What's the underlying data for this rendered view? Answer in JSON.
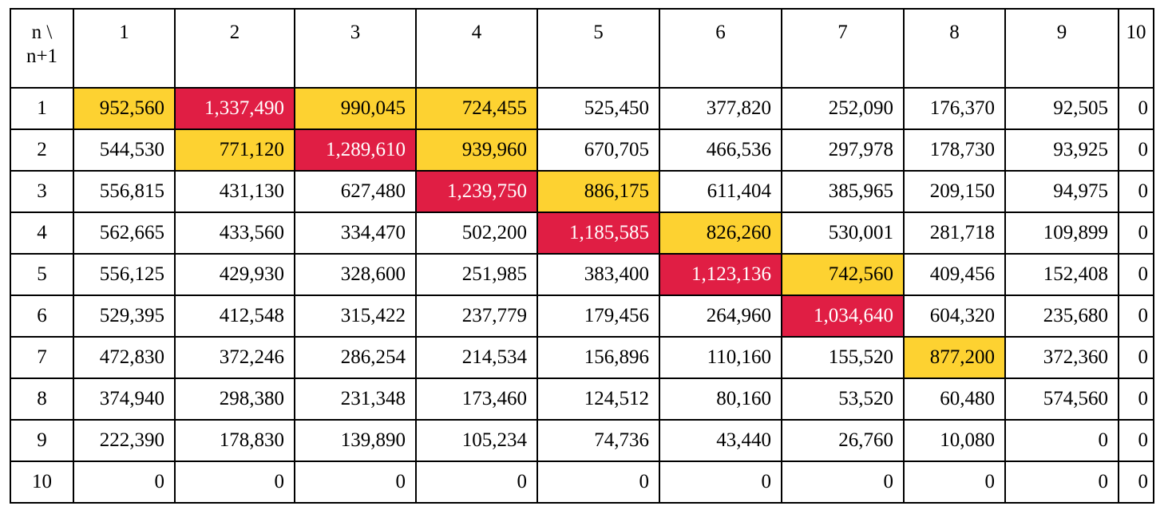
{
  "table": {
    "corner_label": [
      "n \\",
      "n+1"
    ],
    "columns": [
      "1",
      "2",
      "3",
      "4",
      "5",
      "6",
      "7",
      "8",
      "9",
      "10"
    ],
    "rows": [
      {
        "label": "1",
        "cells": [
          "952,560",
          "1,337,490",
          "990,045",
          "724,455",
          "525,450",
          "377,820",
          "252,090",
          "176,370",
          "92,505",
          "0"
        ]
      },
      {
        "label": "2",
        "cells": [
          "544,530",
          "771,120",
          "1,289,610",
          "939,960",
          "670,705",
          "466,536",
          "297,978",
          "178,730",
          "93,925",
          "0"
        ]
      },
      {
        "label": "3",
        "cells": [
          "556,815",
          "431,130",
          "627,480",
          "1,239,750",
          "886,175",
          "611,404",
          "385,965",
          "209,150",
          "94,975",
          "0"
        ]
      },
      {
        "label": "4",
        "cells": [
          "562,665",
          "433,560",
          "334,470",
          "502,200",
          "1,185,585",
          "826,260",
          "530,001",
          "281,718",
          "109,899",
          "0"
        ]
      },
      {
        "label": "5",
        "cells": [
          "556,125",
          "429,930",
          "328,600",
          "251,985",
          "383,400",
          "1,123,136",
          "742,560",
          "409,456",
          "152,408",
          "0"
        ]
      },
      {
        "label": "6",
        "cells": [
          "529,395",
          "412,548",
          "315,422",
          "237,779",
          "179,456",
          "264,960",
          "1,034,640",
          "604,320",
          "235,680",
          "0"
        ]
      },
      {
        "label": "7",
        "cells": [
          "472,830",
          "372,246",
          "286,254",
          "214,534",
          "156,896",
          "110,160",
          "155,520",
          "877,200",
          "372,360",
          "0"
        ]
      },
      {
        "label": "8",
        "cells": [
          "374,940",
          "298,380",
          "231,348",
          "173,460",
          "124,512",
          "80,160",
          "53,520",
          "60,480",
          "574,560",
          "0"
        ]
      },
      {
        "label": "9",
        "cells": [
          "222,390",
          "178,830",
          "139,890",
          "105,234",
          "74,736",
          "43,440",
          "26,760",
          "10,080",
          "0",
          "0"
        ]
      },
      {
        "label": "10",
        "cells": [
          "0",
          "0",
          "0",
          "0",
          "0",
          "0",
          "0",
          "0",
          "0",
          "0"
        ]
      }
    ],
    "highlights": {
      "red": [
        [
          0,
          1
        ],
        [
          1,
          2
        ],
        [
          2,
          3
        ],
        [
          3,
          4
        ],
        [
          4,
          5
        ],
        [
          5,
          6
        ]
      ],
      "yellow": [
        [
          0,
          0
        ],
        [
          0,
          2
        ],
        [
          0,
          3
        ],
        [
          1,
          1
        ],
        [
          1,
          3
        ],
        [
          2,
          4
        ],
        [
          3,
          5
        ],
        [
          4,
          6
        ],
        [
          6,
          7
        ]
      ]
    },
    "colors": {
      "red": "#e01e44",
      "yellow": "#fdd231",
      "border": "#000000"
    }
  }
}
